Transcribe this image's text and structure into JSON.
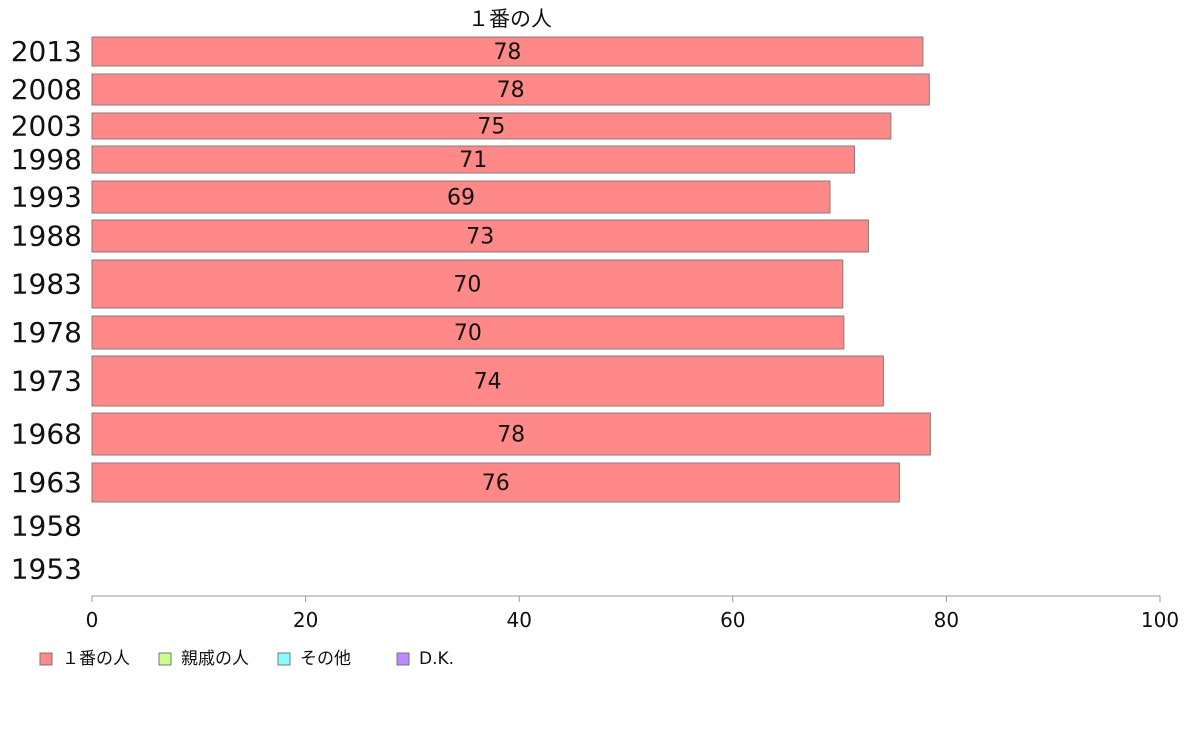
{
  "chart_data": {
    "type": "bar",
    "orientation": "horizontal",
    "title": "１番の人",
    "categories": [
      "2013",
      "2008",
      "2003",
      "1998",
      "1993",
      "1988",
      "1983",
      "1978",
      "1973",
      "1968",
      "1963",
      "1958",
      "1953"
    ],
    "series": [
      {
        "name": "１番の人",
        "color": "#ff8888",
        "values": [
          77.8,
          78.4,
          74.8,
          71.4,
          69.1,
          72.7,
          70.3,
          70.4,
          74.1,
          78.5,
          75.6,
          null,
          null
        ],
        "labels": [
          "78",
          "78",
          "75",
          "71",
          "69",
          "73",
          "70",
          "70",
          "74",
          "78",
          "76",
          "",
          ""
        ]
      }
    ],
    "xlim": [
      0,
      100
    ],
    "xticks": [
      "0",
      "20",
      "40",
      "60",
      "80",
      "100"
    ],
    "grid": false,
    "legend": {
      "placement": "bottom-left",
      "items": [
        {
          "label": "１番の人",
          "color": "#ff8888"
        },
        {
          "label": "親戚の人",
          "color": "#ccff88"
        },
        {
          "label": "その他",
          "color": "#88ffff"
        },
        {
          "label": "D.K.",
          "color": "#bb88ff"
        }
      ]
    }
  }
}
